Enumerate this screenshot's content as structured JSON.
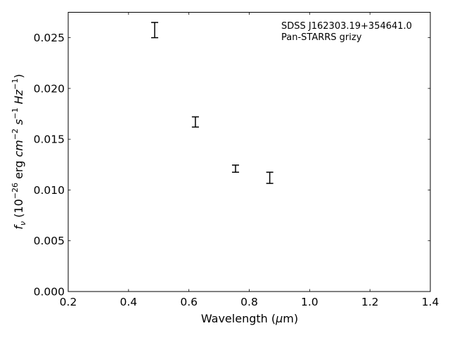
{
  "chart_data": {
    "type": "scatter",
    "annotations": [
      "SDSS J162303.19+354641.0",
      "Pan-STARRS grizy"
    ],
    "xlabel": {
      "prefix": "Wavelength (",
      "symbol": "μ",
      "unit": "m",
      "suffix": ")"
    },
    "ylabel": {
      "symbol": "f",
      "subscript": "ν",
      "text_1": " (10",
      "exp_1": "−26",
      "text_2": " erg ",
      "unit_cm": "cm",
      "exp_cm": "−2",
      "unit_s": "s",
      "exp_s": "−1",
      "unit_hz": "Hz",
      "exp_hz": "−1",
      "text_3": ")"
    },
    "xlim": [
      0.2,
      1.4
    ],
    "ylim": [
      0.0,
      0.0275
    ],
    "xticks": [
      "0.2",
      "0.4",
      "0.6",
      "0.8",
      "1.0",
      "1.2",
      "1.4"
    ],
    "yticks": [
      "0.000",
      "0.005",
      "0.010",
      "0.015",
      "0.020",
      "0.025"
    ],
    "grid": false,
    "marker_color": "#000000",
    "points": [
      {
        "x": 0.4866,
        "y": 0.02575,
        "yerr": 0.00075
      },
      {
        "x": 0.6215,
        "y": 0.0167,
        "yerr": 0.0005
      },
      {
        "x": 0.7545,
        "y": 0.0121,
        "yerr": 0.00035
      },
      {
        "x": 0.8679,
        "y": 0.0112,
        "yerr": 0.00055
      }
    ]
  }
}
